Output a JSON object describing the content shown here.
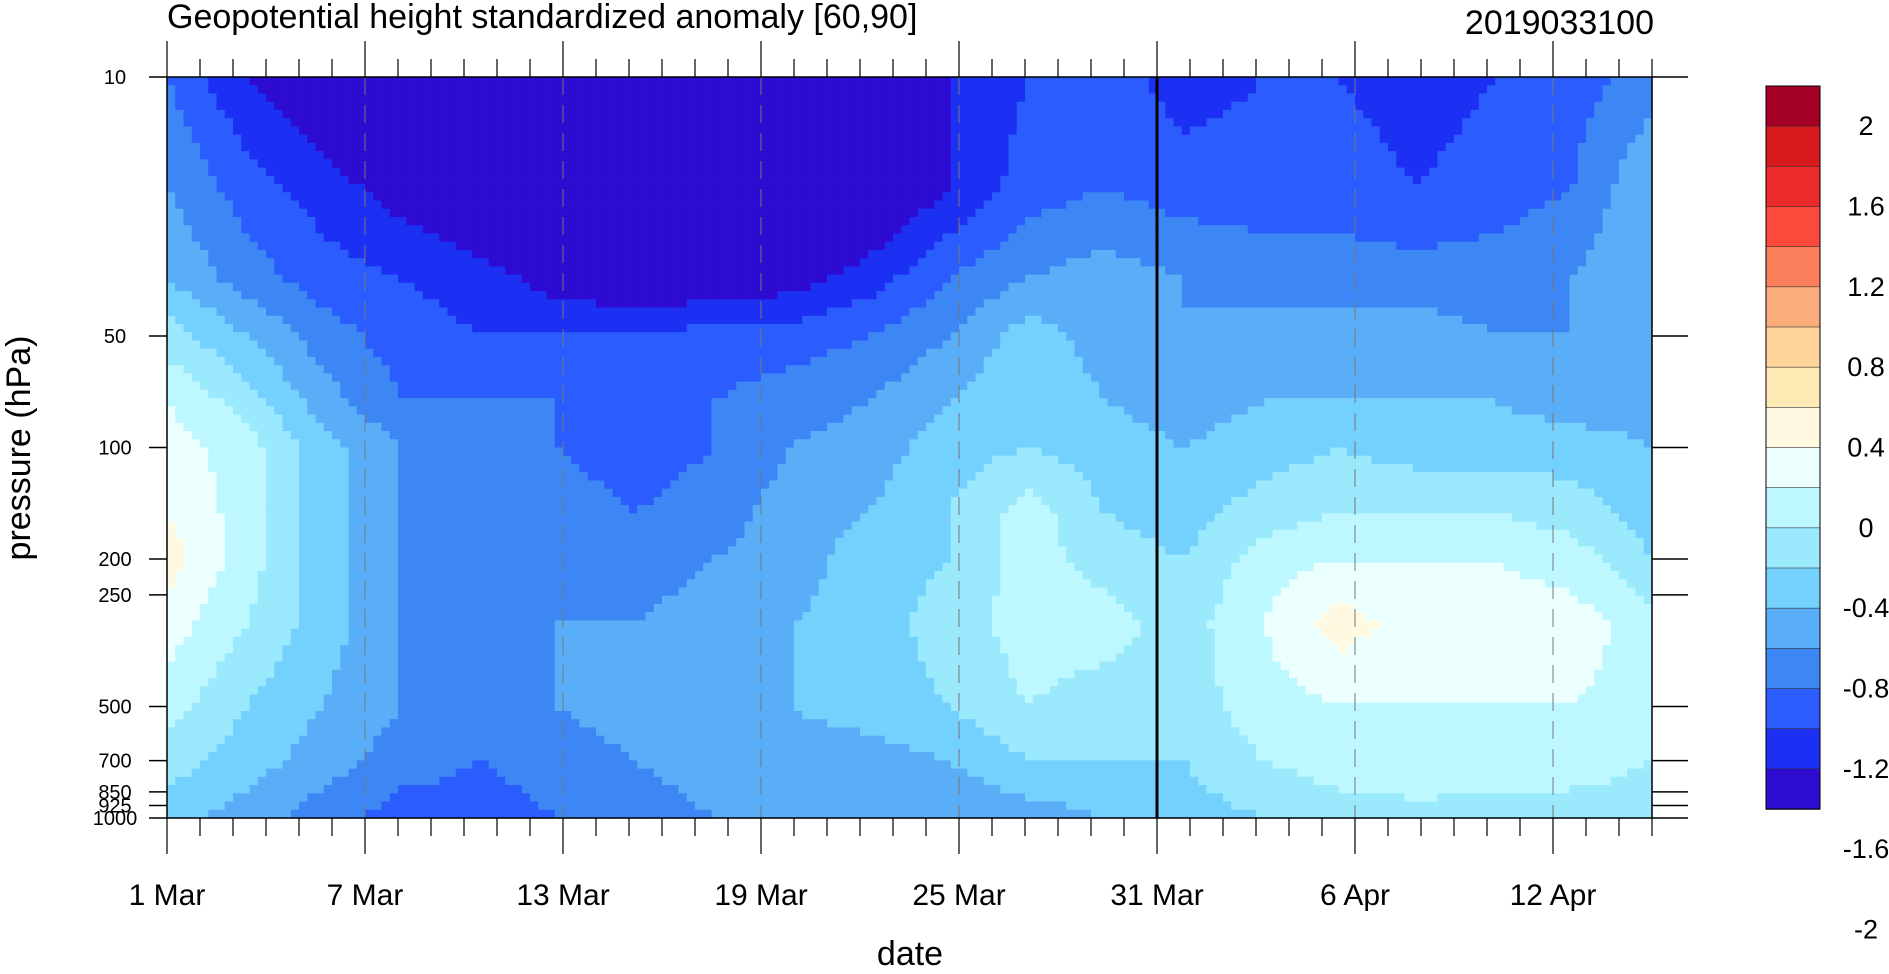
{
  "chart_data": {
    "type": "contour",
    "title": "Geopotential height standardized anomaly [60,90]",
    "date_label": "2019033100",
    "xlabel": "date",
    "ylabel": "pressure (hPa)",
    "x_ticks": [
      "1 Mar",
      "7 Mar",
      "13 Mar",
      "19 Mar",
      "25 Mar",
      "31 Mar",
      "6 Apr",
      "12 Apr"
    ],
    "x_tick_days": [
      0,
      6,
      12,
      18,
      24,
      30,
      36,
      42
    ],
    "x_range_days": [
      0,
      45
    ],
    "marker_day": 30,
    "y_ticks": [
      "10",
      "50",
      "100",
      "200",
      "250",
      "500",
      "700",
      "850",
      "925",
      "1000"
    ],
    "y_tick_values": [
      10,
      50,
      100,
      200,
      250,
      500,
      700,
      850,
      925,
      1000
    ],
    "y_scale": "log",
    "y_range": [
      1000,
      10
    ],
    "colorbar_labels": [
      "2",
      "1.6",
      "1.2",
      "0.8",
      "0.4",
      "0",
      "-0.4",
      "-0.8",
      "-1.2",
      "-1.6",
      "-2"
    ],
    "colorbar_colors": [
      "#a50026",
      "#d7191c",
      "#ec2a2c",
      "#fb4a3c",
      "#fc7f5b",
      "#fcad7c",
      "#fed49a",
      "#fde9b3",
      "#fff9e1",
      "#ebffff",
      "#bdf7ff",
      "#9be9fc",
      "#74d1fe",
      "#5aaef8",
      "#3d87f5",
      "#2b5cfe",
      "#1c30f4",
      "#2d0bd0"
    ],
    "contour_levels": [
      -2,
      -1.8,
      -1.6,
      -1.4,
      -1.2,
      -1.0,
      -0.8,
      -0.6,
      -0.4,
      -0.2,
      0,
      0.2,
      0.4,
      0.6
    ],
    "grid": [
      {
        "p": 10,
        "v": [
          -0.8,
          -1.2,
          -1.4,
          -1.6,
          -1.8,
          -2.0,
          -2.1,
          -2.1,
          -1.9,
          -1.6,
          -1.2,
          -1.0,
          -0.9,
          -1.1,
          -1.0,
          -1.0,
          -1.1,
          -1.0,
          -0.9,
          -0.7
        ]
      },
      {
        "p": 20,
        "v": [
          -0.6,
          -0.9,
          -1.1,
          -1.3,
          -1.5,
          -1.7,
          -1.8,
          -1.8,
          -1.7,
          -1.5,
          -1.2,
          -0.9,
          -0.8,
          -0.9,
          -0.9,
          -0.9,
          -1.0,
          -0.9,
          -0.8,
          -0.4
        ]
      },
      {
        "p": 35,
        "v": [
          -0.4,
          -0.7,
          -0.9,
          -1.0,
          -1.1,
          -1.3,
          -1.4,
          -1.4,
          -1.3,
          -1.1,
          -0.8,
          -0.6,
          -0.5,
          -0.6,
          -0.7,
          -0.7,
          -0.7,
          -0.7,
          -0.6,
          -0.4
        ]
      },
      {
        "p": 50,
        "v": [
          -0.1,
          -0.4,
          -0.7,
          -0.9,
          -1.0,
          -1.0,
          -1.0,
          -0.9,
          -0.9,
          -0.8,
          -0.6,
          -0.3,
          -0.5,
          -0.6,
          -0.5,
          -0.5,
          -0.5,
          -0.6,
          -0.6,
          -0.6
        ]
      },
      {
        "p": 75,
        "v": [
          0.2,
          -0.1,
          -0.5,
          -0.8,
          -0.8,
          -0.8,
          -0.8,
          -0.8,
          -0.7,
          -0.6,
          -0.4,
          -0.2,
          -0.4,
          -0.5,
          -0.4,
          -0.4,
          -0.4,
          -0.4,
          -0.5,
          -0.5
        ]
      },
      {
        "p": 100,
        "v": [
          0.3,
          0.1,
          -0.3,
          -0.6,
          -0.7,
          -0.8,
          -0.9,
          -0.8,
          -0.6,
          -0.5,
          -0.3,
          -0.2,
          -0.3,
          -0.4,
          -0.3,
          -0.2,
          -0.3,
          -0.3,
          -0.3,
          -0.4
        ]
      },
      {
        "p": 150,
        "v": [
          0.4,
          0.1,
          -0.3,
          -0.6,
          -0.7,
          -0.7,
          -0.8,
          -0.7,
          -0.5,
          -0.4,
          -0.2,
          0.1,
          -0.2,
          -0.3,
          -0.1,
          0.0,
          0.0,
          0.0,
          -0.1,
          -0.3
        ]
      },
      {
        "p": 200,
        "v": [
          0.5,
          0.1,
          -0.3,
          -0.6,
          -0.7,
          -0.6,
          -0.7,
          -0.6,
          -0.5,
          -0.3,
          -0.2,
          0.1,
          -0.1,
          -0.2,
          0.1,
          0.2,
          0.2,
          0.2,
          0.1,
          -0.2
        ]
      },
      {
        "p": 300,
        "v": [
          0.3,
          0.0,
          -0.3,
          -0.6,
          -0.7,
          -0.6,
          -0.6,
          -0.5,
          -0.4,
          -0.3,
          -0.1,
          0.1,
          0.1,
          -0.1,
          0.2,
          0.5,
          0.3,
          0.3,
          0.3,
          0.1
        ]
      },
      {
        "p": 500,
        "v": [
          0.1,
          -0.2,
          -0.4,
          -0.6,
          -0.7,
          -0.6,
          -0.5,
          -0.4,
          -0.4,
          -0.3,
          -0.2,
          0.0,
          -0.1,
          -0.1,
          0.1,
          0.2,
          0.2,
          0.2,
          0.2,
          0.1
        ]
      },
      {
        "p": 700,
        "v": [
          -0.1,
          -0.3,
          -0.5,
          -0.7,
          -0.8,
          -0.7,
          -0.6,
          -0.5,
          -0.5,
          -0.5,
          -0.4,
          -0.2,
          -0.2,
          -0.2,
          0.0,
          0.1,
          0.2,
          0.1,
          0.1,
          0.0
        ]
      },
      {
        "p": 1000,
        "v": [
          -0.3,
          -0.5,
          -0.7,
          -0.9,
          -0.9,
          -0.8,
          -0.7,
          -0.6,
          -0.6,
          -0.6,
          -0.6,
          -0.5,
          -0.4,
          -0.3,
          -0.2,
          -0.1,
          -0.1,
          -0.1,
          -0.1,
          -0.1
        ]
      }
    ],
    "grid_days": [
      0,
      2.4,
      4.7,
      7.1,
      9.5,
      11.8,
      14.2,
      16.6,
      18.9,
      21.3,
      23.7,
      26.1,
      28.4,
      30.8,
      33.2,
      35.5,
      37.9,
      40.3,
      42.6,
      45.0
    ]
  }
}
